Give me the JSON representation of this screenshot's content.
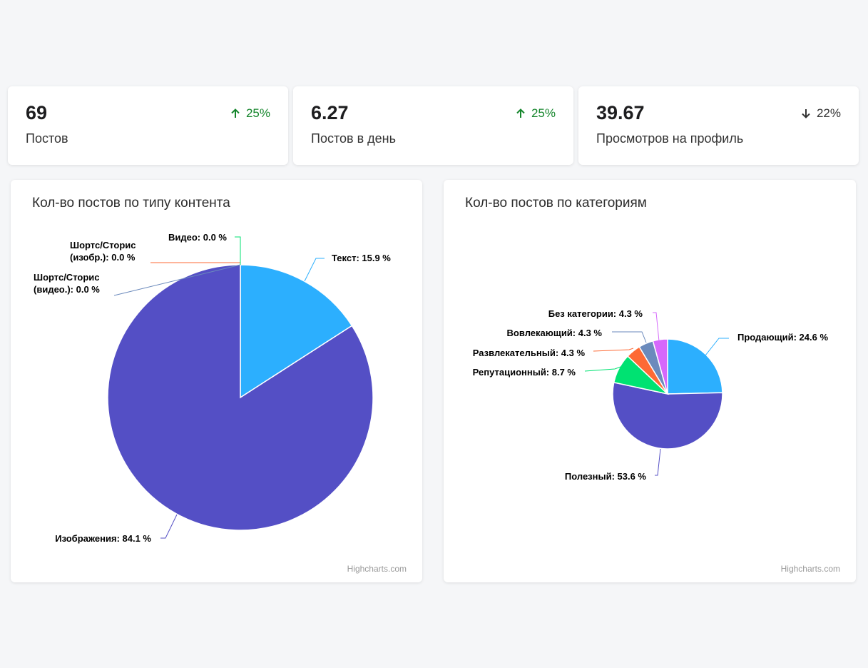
{
  "stats": [
    {
      "value": "69",
      "label": "Постов",
      "change": "25%",
      "direction": "up"
    },
    {
      "value": "6.27",
      "label": "Постов в день",
      "change": "25%",
      "direction": "up"
    },
    {
      "value": "39.67",
      "label": "Просмотров на профиль",
      "change": "22%",
      "direction": "down"
    }
  ],
  "colors": {
    "up": "#14852b",
    "down": "#333333"
  },
  "credits": "Highcharts.com",
  "chart_data": [
    {
      "type": "pie",
      "title": "Кол-во постов по типу контента",
      "slices": [
        {
          "name": "Текст",
          "value": 15.9,
          "label": "Текст: 15.9 %",
          "color": "#2caffe"
        },
        {
          "name": "Изображения",
          "value": 84.1,
          "label": "Изображения: 84.1 %",
          "color": "#544fc5"
        },
        {
          "name": "Шортс/Сторис (видео.)",
          "value": 0.0,
          "label1": "Шортс/Сторис",
          "label2": "(видео.): 0.0 %",
          "color": "#6b8abc"
        },
        {
          "name": "Шортс/Сторис (изобр.)",
          "value": 0.0,
          "label1": "Шортс/Сторис",
          "label2": "(изобр.): 0.0 %",
          "color": "#fe6a35"
        },
        {
          "name": "Видео",
          "value": 0.0,
          "label": "Видео: 0.0 %",
          "color": "#00e272"
        }
      ]
    },
    {
      "type": "pie",
      "title": "Кол-во постов по категориям",
      "slices": [
        {
          "name": "Продающий",
          "value": 24.6,
          "label": "Продающий: 24.6 %",
          "color": "#2caffe"
        },
        {
          "name": "Полезный",
          "value": 53.6,
          "label": "Полезный: 53.6 %",
          "color": "#544fc5"
        },
        {
          "name": "Репутационный",
          "value": 8.7,
          "label": "Репутационный: 8.7 %",
          "color": "#00e272"
        },
        {
          "name": "Развлекательный",
          "value": 4.3,
          "label": "Развлекательный: 4.3 %",
          "color": "#fe6a35"
        },
        {
          "name": "Вовлекающий",
          "value": 4.3,
          "label": "Вовлекающий: 4.3 %",
          "color": "#6b8abc"
        },
        {
          "name": "Без категории",
          "value": 4.3,
          "label": "Без категории: 4.3 %",
          "color": "#d568fb"
        }
      ]
    }
  ]
}
